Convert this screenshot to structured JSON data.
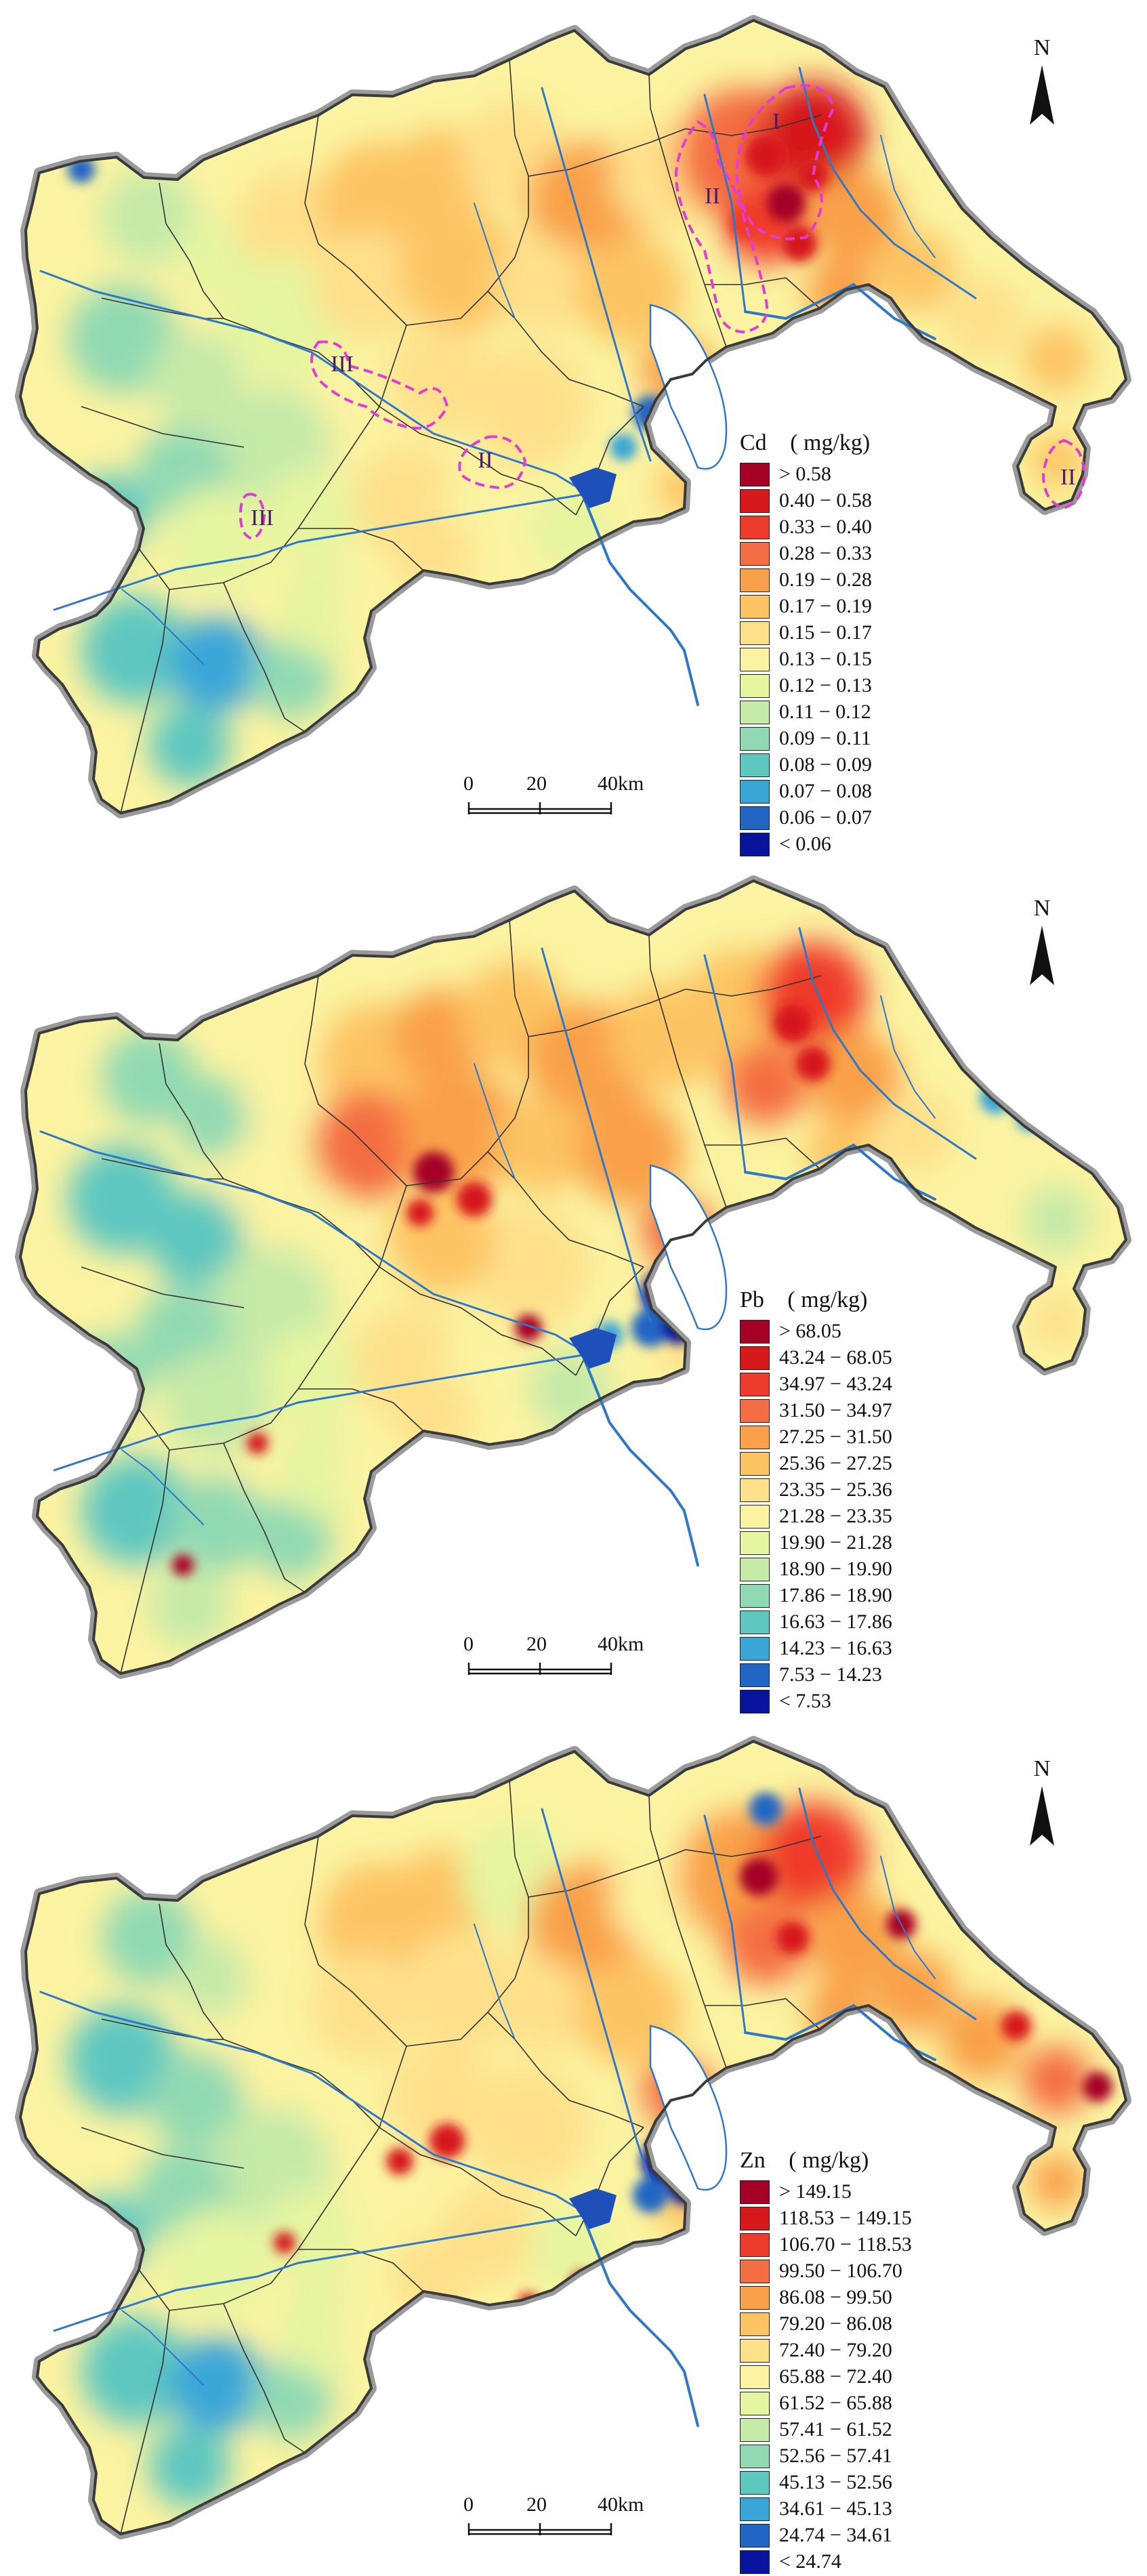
{
  "north_label": "N",
  "scale": {
    "ticks": [
      "0",
      "20",
      "40km"
    ]
  },
  "colors": {
    "boundary": "#3a3a3a",
    "river": "#2f78c8",
    "hotspot": "#e23bd6",
    "halo": "#9a9a9a"
  },
  "panels": [
    {
      "id": "cd",
      "element": "Cd",
      "unit": "( mg/kg)",
      "legend": [
        {
          "label": "> 0.58",
          "color": "#a50026"
        },
        {
          "label": "0.40  −  0.58",
          "color": "#d7191c"
        },
        {
          "label": "0.33  −  0.40",
          "color": "#ef3b2c"
        },
        {
          "label": "0.28  −  0.33",
          "color": "#f46d43"
        },
        {
          "label": "0.19  −  0.28",
          "color": "#f9a04a"
        },
        {
          "label": "0.17  −  0.19",
          "color": "#fdc463"
        },
        {
          "label": "0.15  −  0.17",
          "color": "#fee08b"
        },
        {
          "label": "0.13  −  0.15",
          "color": "#fbf3a1"
        },
        {
          "label": "0.12  −  0.13",
          "color": "#e6f5a0"
        },
        {
          "label": "0.11  −  0.12",
          "color": "#c6eaa8"
        },
        {
          "label": "0.09  −  0.11",
          "color": "#91d9b3"
        },
        {
          "label": "0.08  −  0.09",
          "color": "#5ec7c0"
        },
        {
          "label": "0.07  −  0.08",
          "color": "#3aa6d8"
        },
        {
          "label": "0.06  −  0.07",
          "color": "#2166c4"
        },
        {
          "label": "< 0.06",
          "color": "#08139e"
        }
      ],
      "zones": [
        {
          "label": "I"
        },
        {
          "label": "II"
        },
        {
          "label": "II"
        },
        {
          "label": "II"
        },
        {
          "label": "III"
        },
        {
          "label": "III"
        }
      ]
    },
    {
      "id": "pb",
      "element": "Pb",
      "unit": "( mg/kg)",
      "legend": [
        {
          "label": "> 68.05",
          "color": "#a50026"
        },
        {
          "label": "43.24  −  68.05",
          "color": "#d7191c"
        },
        {
          "label": "34.97  −  43.24",
          "color": "#ef3b2c"
        },
        {
          "label": "31.50  −  34.97",
          "color": "#f46d43"
        },
        {
          "label": "27.25  −  31.50",
          "color": "#f9a04a"
        },
        {
          "label": "25.36  −  27.25",
          "color": "#fdc463"
        },
        {
          "label": "23.35  −  25.36",
          "color": "#fee08b"
        },
        {
          "label": "21.28  −  23.35",
          "color": "#fbf3a1"
        },
        {
          "label": "19.90  −  21.28",
          "color": "#e6f5a0"
        },
        {
          "label": "18.90  −  19.90",
          "color": "#c6eaa8"
        },
        {
          "label": "17.86  −  18.90",
          "color": "#91d9b3"
        },
        {
          "label": "16.63  −  17.86",
          "color": "#5ec7c0"
        },
        {
          "label": "14.23  −  16.63",
          "color": "#3aa6d8"
        },
        {
          "label": "7.53  −  14.23",
          "color": "#2166c4"
        },
        {
          "label": "< 7.53",
          "color": "#08139e"
        }
      ],
      "zones": []
    },
    {
      "id": "zn",
      "element": "Zn",
      "unit": "( mg/kg)",
      "legend": [
        {
          "label": "> 149.15",
          "color": "#a50026"
        },
        {
          "label": "118.53  −  149.15",
          "color": "#d7191c"
        },
        {
          "label": "106.70  −  118.53",
          "color": "#ef3b2c"
        },
        {
          "label": "99.50  −  106.70",
          "color": "#f46d43"
        },
        {
          "label": "86.08  −  99.50",
          "color": "#f9a04a"
        },
        {
          "label": "79.20  −  86.08",
          "color": "#fdc463"
        },
        {
          "label": "72.40  −  79.20",
          "color": "#fee08b"
        },
        {
          "label": "65.88  −  72.40",
          "color": "#fbf3a1"
        },
        {
          "label": "61.52  −  65.88",
          "color": "#e6f5a0"
        },
        {
          "label": "57.41  −  61.52",
          "color": "#c6eaa8"
        },
        {
          "label": "52.56  −  57.41",
          "color": "#91d9b3"
        },
        {
          "label": "45.13  −  52.56",
          "color": "#5ec7c0"
        },
        {
          "label": "34.61  −  45.13",
          "color": "#3aa6d8"
        },
        {
          "label": "24.74  −  34.61",
          "color": "#2166c4"
        },
        {
          "label": "< 24.74",
          "color": "#08139e"
        }
      ],
      "zones": []
    }
  ]
}
